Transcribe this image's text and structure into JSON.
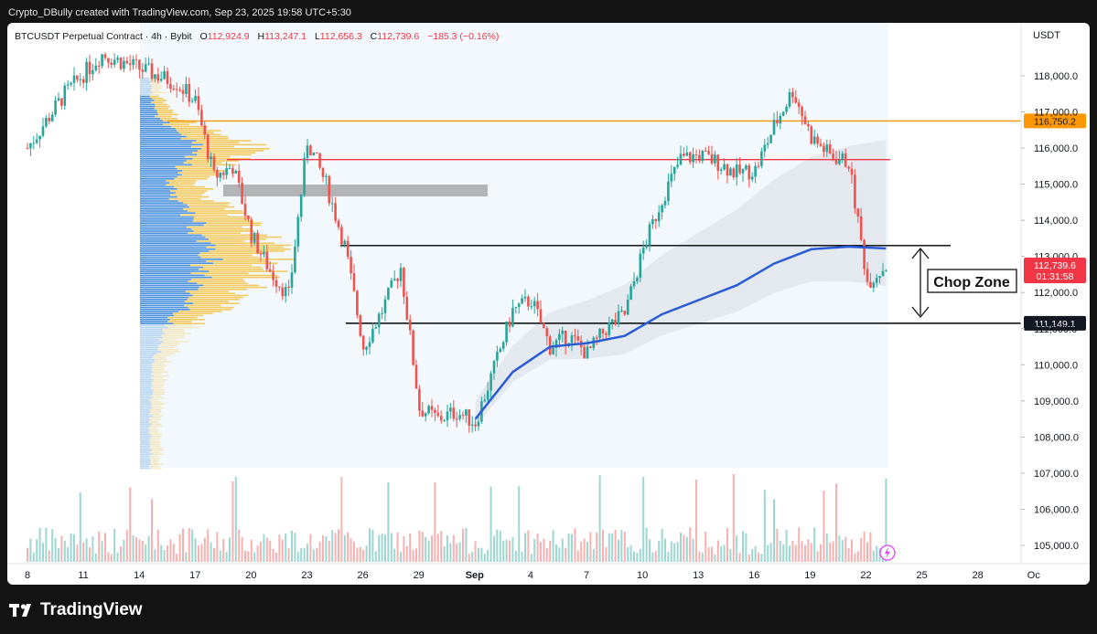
{
  "header": {
    "credit": "Crypto_DBully created with TradingView.com, Sep 23, 2025 19:58 UTC+5:30"
  },
  "legend": {
    "symbol": "BTCUSDT Perpetual Contract · 4h · Bybit",
    "o_label": "O",
    "o_value": "112,924.9",
    "h_label": "H",
    "h_value": "113,247.1",
    "l_label": "L",
    "l_value": "112,656.3",
    "c_label": "C",
    "c_value": "112,739.6",
    "change": "−185.3 (−0.16%)"
  },
  "price_scale": {
    "currency": "USDT",
    "last_price": "112,739.6",
    "countdown": "01:31:58"
  },
  "annotation": {
    "chop_zone": "Chop Zone"
  },
  "branding": {
    "name": "TradingView"
  },
  "colors": {
    "up": "#26a69a",
    "down": "#ef5350",
    "vwap": "#2a5bd7",
    "resistance_orange": "#ff9800",
    "resistance_red": "#f23645",
    "label_orange": "#ff9800",
    "label_black": "#131722",
    "label_red": "#f23645"
  },
  "chart_data": {
    "type": "candlestick",
    "symbol": "BTCUSDT Perpetual Contract",
    "timeframe": "4h",
    "exchange": "Bybit",
    "y_axis": {
      "ticks": [
        105000,
        106000,
        107000,
        108000,
        109000,
        110000,
        111000,
        112000,
        113000,
        114000,
        115000,
        116000,
        117000,
        118000
      ],
      "tick_labels": [
        "105,000.0",
        "106,000.0",
        "107,000.0",
        "108,000.0",
        "109,000.0",
        "110,000.0",
        "111,000.0",
        "112,000.0",
        "113,000.0",
        "114,000.0",
        "115,000.0",
        "116,000.0",
        "117,000.0",
        "118,000.0"
      ]
    },
    "x_axis": {
      "labels": [
        "8",
        "11",
        "14",
        "17",
        "20",
        "23",
        "26",
        "29",
        "Sep",
        "4",
        "7",
        "10",
        "13",
        "16",
        "19",
        "22",
        "25",
        "28",
        "Oc"
      ],
      "bold": [
        "Sep"
      ]
    },
    "horizontal_levels": [
      {
        "name": "orange-resistance",
        "value": 116750.2,
        "label": "116,750.2",
        "color": "#ff9800"
      },
      {
        "name": "red-resistance",
        "value": 115680,
        "color": "#f23645"
      },
      {
        "name": "chop-top",
        "value": 113300
      },
      {
        "name": "chop-bottom",
        "value": 111149.1,
        "label": "111,149.1"
      }
    ],
    "price_path": [
      [
        "Aug 8",
        116000
      ],
      [
        "Aug 10",
        117500
      ],
      [
        "Aug 12",
        118600
      ],
      [
        "Aug 14",
        118200
      ],
      [
        "Aug 16",
        117800
      ],
      [
        "Aug 17",
        117300
      ],
      [
        "Aug 18",
        115200
      ],
      [
        "Aug 19",
        115500
      ],
      [
        "Aug 20",
        113600
      ],
      [
        "Aug 21",
        112600
      ],
      [
        "Aug 22",
        111900
      ],
      [
        "Aug 23",
        116200
      ],
      [
        "Aug 24",
        115000
      ],
      [
        "Aug 25",
        113300
      ],
      [
        "Aug 26",
        110500
      ],
      [
        "Aug 27",
        111500
      ],
      [
        "Aug 28",
        112700
      ],
      [
        "Aug 29",
        108800
      ],
      [
        "Aug 30",
        108500
      ],
      [
        "Aug 31",
        108700
      ],
      [
        "Sep 1",
        108400
      ],
      [
        "Sep 2",
        109900
      ],
      [
        "Sep 3",
        111500
      ],
      [
        "Sep 4",
        111800
      ],
      [
        "Sep 5",
        110500
      ],
      [
        "Sep 6",
        110800
      ],
      [
        "Sep 7",
        110300
      ],
      [
        "Sep 8",
        111000
      ],
      [
        "Sep 9",
        111400
      ],
      [
        "Sep 10",
        113200
      ],
      [
        "Sep 11",
        114600
      ],
      [
        "Sep 12",
        115700
      ],
      [
        "Sep 13",
        115800
      ],
      [
        "Sep 14",
        115600
      ],
      [
        "Sep 15",
        115300
      ],
      [
        "Sep 16",
        115400
      ],
      [
        "Sep 17",
        116600
      ],
      [
        "Sep 18",
        117600
      ],
      [
        "Sep 19",
        116300
      ],
      [
        "Sep 20",
        115800
      ],
      [
        "Sep 21",
        115600
      ],
      [
        "Sep 22",
        112300
      ],
      [
        "Sep 23",
        112739.6
      ]
    ],
    "anchored_vwap": [
      [
        "Sep 1",
        108500
      ],
      [
        "Sep 3",
        109800
      ],
      [
        "Sep 5",
        110500
      ],
      [
        "Sep 7",
        110600
      ],
      [
        "Sep 9",
        110800
      ],
      [
        "Sep 11",
        111400
      ],
      [
        "Sep 13",
        111800
      ],
      [
        "Sep 15",
        112200
      ],
      [
        "Sep 17",
        112800
      ],
      [
        "Sep 19",
        113200
      ],
      [
        "Sep 21",
        113270
      ],
      [
        "Sep 23",
        113220
      ]
    ]
  }
}
